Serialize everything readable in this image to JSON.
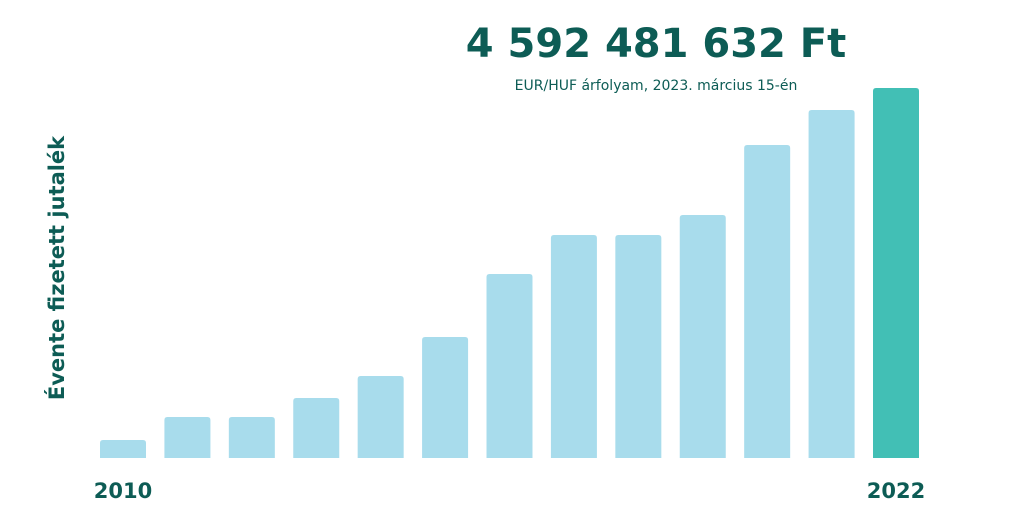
{
  "chart_data": {
    "type": "bar",
    "title": "4 592 481 632 Ft",
    "subtitle": "EUR/HUF árfolyam, 2023. március 15-én",
    "y_label": "Évente fizetett jutalék",
    "categories": [
      "2010",
      null,
      null,
      null,
      null,
      null,
      null,
      null,
      null,
      null,
      null,
      null,
      "2022"
    ],
    "values": [
      223000000,
      509000000,
      509000000,
      745000000,
      1018000000,
      1502000000,
      2284000000,
      2768000000,
      2768000000,
      3016000000,
      3885000000,
      4319000000,
      4592481632
    ],
    "value_labels": [
      null,
      null,
      null,
      null,
      null,
      null,
      null,
      null,
      null,
      null,
      null,
      null,
      "4 592 481 632 Ft"
    ],
    "colors": [
      "#a8dcec",
      "#a8dcec",
      "#a8dcec",
      "#a8dcec",
      "#a8dcec",
      "#a8dcec",
      "#a8dcec",
      "#a8dcec",
      "#a8dcec",
      "#a8dcec",
      "#a8dcec",
      "#a8dcec",
      "#42bfb5"
    ]
  }
}
